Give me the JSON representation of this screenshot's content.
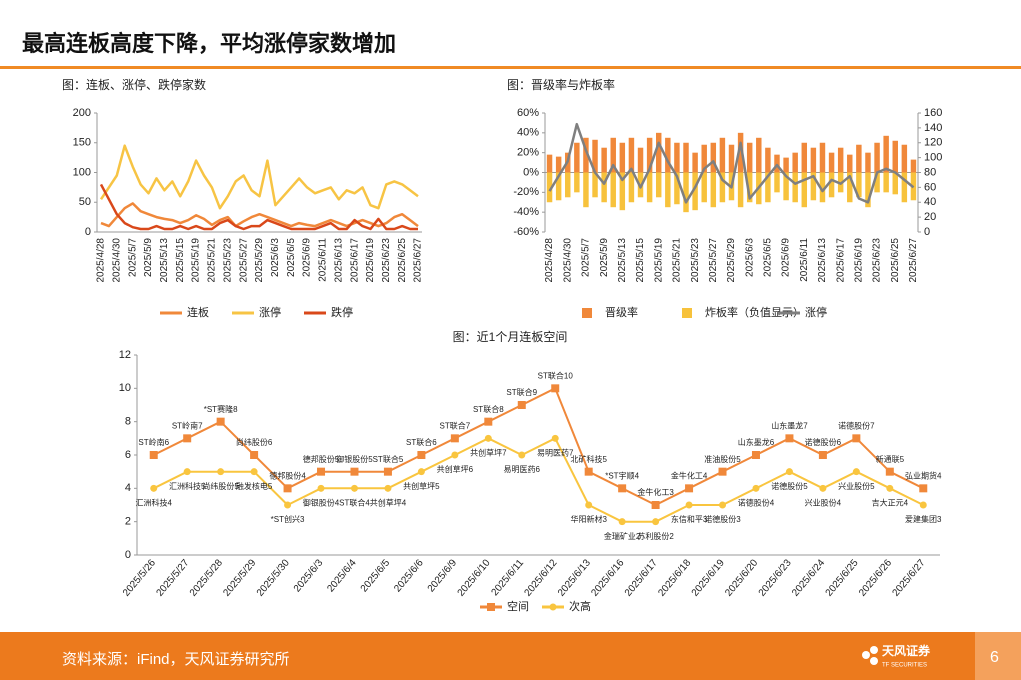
{
  "header": {
    "title": "最高连板高度下降，平均涨停家数增加"
  },
  "chart_data": [
    {
      "type": "line",
      "title": "图：连板、涨停、跌停家数",
      "categories": [
        "2025/4/28",
        null,
        "2025/4/30",
        null,
        "2025/5/7",
        null,
        "2025/5/9",
        null,
        "2025/5/13",
        null,
        "2025/5/15",
        null,
        "2025/5/19",
        null,
        "2025/5/21",
        null,
        "2025/5/23",
        null,
        "2025/5/27",
        null,
        "2025/5/29",
        null,
        "2025/6/3",
        null,
        "2025/6/5",
        null,
        "2025/6/9",
        null,
        "2025/6/11",
        null,
        "2025/6/13",
        null,
        "2025/6/17",
        null,
        "2025/6/19",
        null,
        "2025/6/23",
        null,
        "2025/6/25",
        null,
        "2025/6/27"
      ],
      "ylim": [
        0,
        200
      ],
      "yticks": [
        0,
        50,
        100,
        150,
        200
      ],
      "legend": "bottom",
      "series": [
        {
          "name": "连板",
          "color": "#f0883a",
          "values": [
            15,
            10,
            25,
            40,
            48,
            35,
            30,
            25,
            22,
            20,
            15,
            20,
            28,
            22,
            12,
            20,
            25,
            10,
            18,
            25,
            30,
            25,
            20,
            15,
            10,
            15,
            12,
            10,
            15,
            20,
            15,
            10,
            15,
            20,
            15,
            10,
            15,
            25,
            30,
            20,
            10
          ]
        },
        {
          "name": "涨停",
          "color": "#f7c444",
          "values": [
            55,
            75,
            95,
            145,
            110,
            80,
            65,
            90,
            70,
            85,
            60,
            85,
            120,
            95,
            75,
            40,
            60,
            85,
            95,
            70,
            60,
            120,
            45,
            60,
            75,
            90,
            75,
            65,
            70,
            75,
            55,
            70,
            65,
            75,
            45,
            40,
            80,
            85,
            80,
            70,
            60
          ]
        },
        {
          "name": "跌停",
          "color": "#d9481a",
          "values": [
            80,
            55,
            30,
            15,
            8,
            5,
            5,
            10,
            5,
            5,
            10,
            5,
            10,
            5,
            5,
            15,
            20,
            10,
            5,
            10,
            10,
            20,
            15,
            10,
            5,
            5,
            5,
            5,
            10,
            15,
            5,
            5,
            20,
            10,
            5,
            22,
            5,
            5,
            10,
            5,
            5
          ]
        }
      ]
    },
    {
      "type": "bar",
      "title": "图：晋级率与炸板率",
      "categories": [
        "2025/4/28",
        null,
        "2025/4/30",
        null,
        "2025/5/7",
        null,
        "2025/5/9",
        null,
        "2025/5/13",
        null,
        "2025/5/15",
        null,
        "2025/5/19",
        null,
        "2025/5/21",
        null,
        "2025/5/23",
        null,
        "2025/5/27",
        null,
        "2025/5/29",
        null,
        "2025/6/3",
        null,
        "2025/6/5",
        null,
        "2025/6/9",
        null,
        "2025/6/11",
        null,
        "2025/6/13",
        null,
        "2025/6/17",
        null,
        "2025/6/19",
        null,
        "2025/6/23",
        null,
        "2025/6/25",
        null,
        "2025/6/27"
      ],
      "ylim": [
        -60,
        60
      ],
      "yticks": [
        {
          "value": -60,
          "label": "-60%"
        },
        {
          "value": -40,
          "label": "-40%"
        },
        {
          "value": -20,
          "label": "-20%"
        },
        {
          "value": 0,
          "label": "0%"
        },
        {
          "value": 20,
          "label": "20%"
        },
        {
          "value": 40,
          "label": "40%"
        },
        {
          "value": 60,
          "label": "60%"
        }
      ],
      "y2lim": [
        0,
        160
      ],
      "y2ticks": [
        0,
        20,
        40,
        60,
        80,
        100,
        120,
        140,
        160
      ],
      "legend": "bottom",
      "series": [
        {
          "name": "晋级率",
          "color": "#f0883a",
          "values": [
            18,
            16,
            20,
            30,
            35,
            33,
            25,
            35,
            30,
            35,
            25,
            35,
            40,
            35,
            30,
            30,
            20,
            28,
            30,
            35,
            28,
            40,
            30,
            35,
            25,
            18,
            15,
            20,
            30,
            25,
            30,
            20,
            25,
            18,
            28,
            20,
            30,
            37,
            32,
            28,
            13
          ]
        },
        {
          "name": "炸板率（负值显示）",
          "color": "#f7c23c",
          "values": [
            -30,
            -28,
            -25,
            -20,
            -35,
            -25,
            -30,
            -35,
            -38,
            -30,
            -25,
            -30,
            -25,
            -35,
            -32,
            -40,
            -38,
            -30,
            -35,
            -30,
            -28,
            -35,
            -30,
            -32,
            -30,
            -20,
            -28,
            -30,
            -35,
            -28,
            -30,
            -25,
            -20,
            -30,
            -25,
            -35,
            -20,
            -20,
            -22,
            -30,
            -28
          ]
        },
        {
          "name": "涨停",
          "color": "#7f7f7f",
          "axis": "y2",
          "values": [
            55,
            75,
            95,
            145,
            110,
            80,
            65,
            90,
            70,
            85,
            60,
            85,
            120,
            95,
            75,
            40,
            60,
            85,
            95,
            70,
            60,
            120,
            45,
            60,
            75,
            90,
            75,
            65,
            70,
            75,
            55,
            70,
            65,
            75,
            45,
            40,
            80,
            85,
            80,
            70,
            60
          ]
        }
      ]
    },
    {
      "type": "line",
      "title": "图：近1个月连板空间",
      "markers": true,
      "categories": [
        "2025/5/26",
        "2025/5/27",
        "2025/5/28",
        "2025/5/29",
        "2025/5/30",
        "2025/6/3",
        "2025/6/4",
        "2025/6/5",
        "2025/6/6",
        "2025/6/9",
        "2025/6/10",
        "2025/6/11",
        "2025/6/12",
        "2025/6/13",
        "2025/6/16",
        "2025/6/17",
        "2025/6/18",
        "2025/6/19",
        "2025/6/20",
        "2025/6/23",
        "2025/6/24",
        "2025/6/25",
        "2025/6/26",
        "2025/6/27"
      ],
      "ylim": [
        0,
        12
      ],
      "yticks": [
        0,
        2,
        4,
        6,
        8,
        10,
        12
      ],
      "legend": "bottom",
      "series": [
        {
          "name": "空间",
          "color": "#f0883a",
          "marker": "square",
          "label_position": "above",
          "values": [
            6,
            7,
            8,
            6,
            4,
            5,
            5,
            5,
            6,
            7,
            8,
            9,
            10,
            5,
            4,
            3,
            4,
            5,
            6,
            7,
            6,
            7,
            5,
            4
          ],
          "labels": [
            "ST岭南6",
            "ST岭南7",
            "*ST赛隆8",
            "尚纬股份6",
            "德邦股份4",
            "德邦股份5",
            "御银股份5",
            "ST联合5",
            "ST联合6",
            "ST联合7",
            "ST联合8",
            "ST联合9",
            "ST联合10",
            "北矿科技5",
            "*ST宇顺4",
            "金牛化工3",
            "金牛化工4",
            "准油股份5",
            "山东墨龙6",
            "山东墨龙7",
            "诺德股份6",
            "诺德股份7",
            "新通联5",
            "弘业期货4"
          ]
        },
        {
          "name": "次高",
          "color": "#f9c53f",
          "marker": "circle",
          "label_position": "below",
          "values": [
            4,
            5,
            5,
            5,
            3,
            4,
            4,
            4,
            5,
            6,
            7,
            6,
            7,
            3,
            2,
            2,
            3,
            3,
            4,
            5,
            4,
            5,
            4,
            3
          ],
          "labels": [
            "汇洲科技4",
            "汇洲科技5",
            "尚纬股份5",
            "融发核电5",
            "*ST创兴3",
            "御银股份4",
            "ST联合4",
            "共创草坪4",
            "共创草坪5",
            "共创草坪6",
            "共创草坪7",
            "易明医药6",
            "易明医药7",
            "华阳新材3",
            "金瑞矿业2",
            "苏利股份2",
            "东信和平3",
            "诺德股份3",
            "诺德股份4",
            "诺德股份5",
            "兴业股份4",
            "兴业股份5",
            "吉大正元4",
            "爱建集团3"
          ]
        }
      ]
    }
  ],
  "footer": {
    "source": "资料来源：iFind，天风证券研究所",
    "logo": "天风证券",
    "logo_en": "TF SECURITIES",
    "page": "6"
  }
}
